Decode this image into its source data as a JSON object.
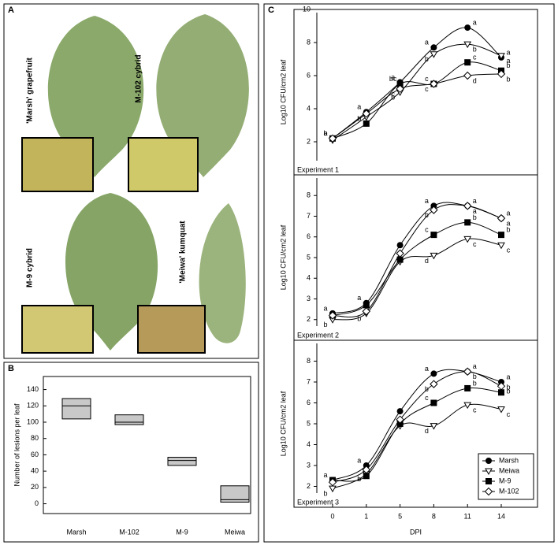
{
  "panel_labels": [
    "A",
    "B",
    "C"
  ],
  "photo_labels": [
    "'Marsh' grapefruit",
    "M-102 cybrid",
    "M-9 cybrid",
    "'Meiwa' kumquat"
  ],
  "chart_data": [
    {
      "type": "box",
      "ylabel": "Number of lesions per leaf",
      "categories": [
        "Marsh",
        "M-102",
        "M-9",
        "Meiwa"
      ],
      "q1": [
        104,
        97,
        47,
        2
      ],
      "median": [
        120,
        100,
        53,
        5
      ],
      "q3": [
        129,
        109,
        57,
        22
      ],
      "color": "#c8c8c8",
      "ylim": [
        -12,
        156
      ],
      "yticks": [
        0,
        20,
        40,
        60,
        80,
        100,
        120,
        140
      ]
    },
    {
      "type": "line",
      "annotation": "Experiment 1",
      "ylabel": "Log10 CFU/cm2 leaf",
      "ylim": [
        0,
        10
      ],
      "yticks": [
        2,
        4,
        6,
        8,
        10
      ],
      "series": [
        {
          "name": "Marsh",
          "marker": "circle",
          "filled": true,
          "color": "#000",
          "values": [
            2.2,
            3.8,
            5.6,
            7.7,
            8.9,
            7.1
          ],
          "letters": [
            "a",
            "a",
            "a",
            "a",
            "a",
            "a"
          ]
        },
        {
          "name": "Meiwa",
          "marker": "triangle-down",
          "filled": false,
          "color": "#000",
          "values": [
            2.1,
            3.5,
            5.0,
            7.3,
            7.9,
            7.2
          ],
          "letters": [
            null,
            null,
            "b",
            "b",
            "b",
            "a"
          ]
        },
        {
          "name": "M-9",
          "marker": "square",
          "filled": true,
          "color": "#000",
          "values": [
            2.2,
            3.1,
            5.5,
            5.5,
            6.8,
            6.3
          ],
          "letters": [
            "b",
            "b",
            "bc",
            "c",
            "c",
            "b"
          ]
        },
        {
          "name": "M-102",
          "marker": "diamond",
          "filled": false,
          "color": "#000",
          "values": [
            2.2,
            3.7,
            5.2,
            5.5,
            6.0,
            6.1
          ],
          "letters": [
            null,
            null,
            "c",
            "c",
            "d",
            "b"
          ]
        }
      ]
    },
    {
      "type": "line",
      "annotation": "Experiment 2",
      "ylabel": "Log10 CFU/cm2 leaf",
      "ylim": [
        1,
        9
      ],
      "yticks": [
        2,
        3,
        4,
        5,
        6,
        7,
        8
      ],
      "series": [
        {
          "name": "Marsh",
          "marker": "circle",
          "filled": true,
          "color": "#000",
          "values": [
            2.3,
            2.8,
            5.6,
            7.5,
            7.5,
            6.9
          ],
          "letters": [
            "a",
            "a",
            null,
            "a",
            "a",
            "a"
          ]
        },
        {
          "name": "Meiwa",
          "marker": "triangle-down",
          "filled": false,
          "color": "#000",
          "values": [
            2.0,
            2.3,
            4.8,
            5.1,
            5.9,
            5.6
          ],
          "letters": [
            "b",
            "b",
            null,
            "d",
            "c",
            "c"
          ]
        },
        {
          "name": "M-9",
          "marker": "square",
          "filled": true,
          "color": "#000",
          "values": [
            2.2,
            2.7,
            4.9,
            6.1,
            6.7,
            6.1
          ],
          "letters": [
            null,
            null,
            null,
            "c",
            "b",
            "b"
          ]
        },
        {
          "name": "M-102",
          "marker": "diamond",
          "filled": false,
          "color": "#000",
          "values": [
            2.2,
            2.4,
            5.2,
            7.3,
            7.5,
            6.9
          ],
          "letters": [
            null,
            null,
            null,
            "b",
            "a",
            "a"
          ]
        }
      ]
    },
    {
      "type": "line",
      "annotation": "Experiment 3",
      "ylabel": "Log10 CFU/cm2 leaf",
      "xlabel": "DPI",
      "categories": [
        "0",
        "1",
        "5",
        "8",
        "11",
        "14"
      ],
      "ylim": [
        1,
        9
      ],
      "yticks": [
        2,
        3,
        4,
        5,
        6,
        7,
        8
      ],
      "legend": "lower right",
      "series": [
        {
          "name": "Marsh",
          "marker": "circle",
          "filled": true,
          "color": "#000",
          "values": [
            2.3,
            3.0,
            5.6,
            7.4,
            7.5,
            7.0
          ],
          "letters": [
            "a",
            "a",
            null,
            "a",
            "a",
            "a"
          ]
        },
        {
          "name": "Meiwa",
          "marker": "triangle-down",
          "filled": false,
          "color": "#000",
          "values": [
            1.9,
            2.6,
            4.9,
            4.9,
            5.9,
            5.7
          ],
          "letters": [
            "b",
            "b",
            null,
            "d",
            "c",
            "c"
          ]
        },
        {
          "name": "M-9",
          "marker": "square",
          "filled": true,
          "color": "#000",
          "values": [
            2.3,
            2.5,
            5.0,
            6.0,
            6.7,
            6.5
          ],
          "letters": [
            null,
            null,
            null,
            "c",
            "b",
            "b"
          ]
        },
        {
          "name": "M-102",
          "marker": "diamond",
          "filled": false,
          "color": "#000",
          "values": [
            2.2,
            2.8,
            5.2,
            6.9,
            7.5,
            6.8
          ],
          "letters": [
            null,
            null,
            null,
            "b",
            "b",
            "b"
          ]
        }
      ]
    }
  ]
}
